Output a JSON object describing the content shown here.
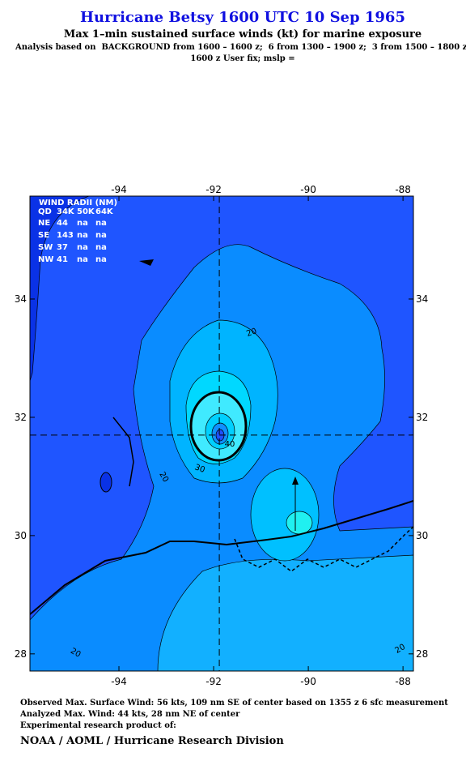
{
  "header": {
    "title": "Hurricane Betsy 1600 UTC 10 Sep 1965",
    "subtitle": "Max 1–min sustained surface winds (kt) for marine exposure",
    "analysis": [
      "Analysis based on  BACKGROUND from 1600 – 1600 z;  6 from 1300 – 1900 z;  3 from 1500 – 1800 z;",
      "1600 z User fix; mslp ="
    ]
  },
  "map": {
    "xlim": [
      -95.88,
      -87.78
    ],
    "ylim": [
      27.71,
      35.74
    ],
    "xticks": [
      -94,
      -92,
      -90,
      -88
    ],
    "yticks": [
      28,
      30,
      32,
      34
    ],
    "center": [
      -91.88,
      31.7
    ],
    "contour_labels": [
      "20",
      "30",
      "40",
      "20",
      "20",
      "20"
    ]
  },
  "wind_radii": {
    "title": "WIND RADII (NM)",
    "columns": [
      "QD",
      "34K",
      "50K",
      "64K"
    ],
    "rows": [
      [
        "NE",
        44,
        "na",
        "na"
      ],
      [
        "SE",
        143,
        "na",
        "na"
      ],
      [
        "SW",
        37,
        "na",
        "na"
      ],
      [
        "NW",
        41,
        "na",
        "na"
      ]
    ]
  },
  "footer": [
    "Observed Max. Surface Wind: 56 kts, 109 nm SE of center based on 1355 z 6 sfc measurement",
    "Analyzed Max. Wind: 44 kts, 28 nm NE of center",
    "Experimental research product of:",
    "NOAA / AOML / Hurricane Research Division"
  ]
}
